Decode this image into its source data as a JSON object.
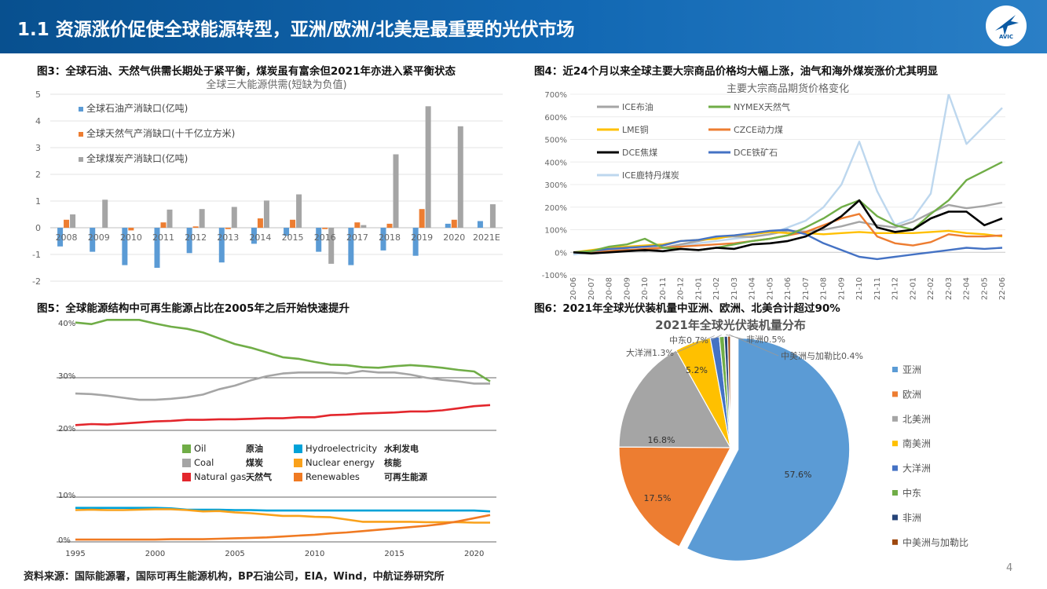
{
  "header": {
    "title": "1.1 资源涨价促使全球能源转型，亚洲/欧洲/北美是最重要的光伏市场",
    "logo_text": "AVIC"
  },
  "figures": {
    "fig3_caption": "图3：全球石油、天然气供需长期处于紧平衡，煤炭虽有富余但2021年亦进入紧平衡状态",
    "fig4_caption": "图4：近24个月以来全球主要大宗商品价格均大幅上涨，油气和海外煤炭涨价尤其明显",
    "fig5_caption": "图5：全球能源结构中可再生能源占比在2005年之后开始快速提升",
    "fig6_caption": "图6：2021年全球光伏装机量中亚洲、欧洲、北美合计超过90%"
  },
  "footer": {
    "source": "资料来源：国际能源署，国际可再生能源机构，BP石油公司，EIA，Wind，中航证券研究所",
    "page": "4"
  },
  "chart_data": [
    {
      "id": "fig3",
      "type": "bar",
      "title": "全球三大能源供需(短缺为负值)",
      "categories": [
        "2008",
        "2009",
        "2010",
        "2011",
        "2012",
        "2013",
        "2014",
        "2015",
        "2016",
        "2017",
        "2018",
        "2019",
        "2020",
        "2021E"
      ],
      "ylim": [
        -2,
        5
      ],
      "yticks": [
        -2,
        -1,
        0,
        1,
        2,
        3,
        4,
        5
      ],
      "grid": true,
      "legend_position": "top-left",
      "series": [
        {
          "name": "全球石油产消缺口(亿吨)",
          "color": "#5b9bd5",
          "values": [
            -0.7,
            -0.9,
            -1.4,
            -1.5,
            -0.95,
            -1.3,
            -0.6,
            -0.3,
            -0.9,
            -1.4,
            -0.85,
            -1.05,
            0.15,
            0.25
          ]
        },
        {
          "name": "全球天然气产消缺口(十千亿立方米)",
          "color": "#ed7d31",
          "values": [
            0.3,
            0.0,
            -0.1,
            0.2,
            0.05,
            -0.05,
            0.35,
            0.3,
            -0.05,
            0.2,
            0.15,
            0.7,
            0.3,
            0.0
          ]
        },
        {
          "name": "全球煤炭产消缺口(亿吨)",
          "color": "#a5a5a5",
          "values": [
            0.5,
            1.05,
            0.0,
            0.68,
            0.7,
            0.78,
            1.02,
            1.25,
            -1.35,
            0.1,
            2.75,
            4.55,
            3.8,
            0.88
          ]
        }
      ]
    },
    {
      "id": "fig4",
      "type": "line",
      "title": "主要大宗商品期货价格变化",
      "x": [
        "20-06",
        "20-07",
        "20-08",
        "20-09",
        "20-10",
        "20-11",
        "20-12",
        "21-01",
        "21-02",
        "21-03",
        "21-04",
        "21-05",
        "21-06",
        "21-07",
        "21-08",
        "21-09",
        "21-10",
        "21-11",
        "21-12",
        "22-01",
        "22-02",
        "22-03",
        "22-04",
        "22-05",
        "22-06"
      ],
      "ylim": [
        -100,
        700
      ],
      "yticks": [
        "-100%",
        "0%",
        "100%",
        "200%",
        "300%",
        "400%",
        "500%",
        "600%",
        "700%"
      ],
      "legend_position": "top-left",
      "series": [
        {
          "name": "ICE布油",
          "color": "#a5a5a5",
          "values": [
            0,
            5,
            10,
            12,
            5,
            20,
            35,
            50,
            65,
            70,
            68,
            80,
            95,
            92,
            100,
            115,
            135,
            120,
            110,
            135,
            175,
            210,
            195,
            205,
            220
          ]
        },
        {
          "name": "NYMEX天然气",
          "color": "#70ad47",
          "values": [
            0,
            5,
            25,
            35,
            60,
            20,
            15,
            10,
            20,
            35,
            50,
            60,
            75,
            110,
            150,
            200,
            230,
            160,
            120,
            100,
            170,
            230,
            320,
            360,
            400
          ]
        },
        {
          "name": "LME铜",
          "color": "#ffc000",
          "values": [
            0,
            10,
            20,
            25,
            30,
            35,
            50,
            55,
            60,
            75,
            80,
            90,
            85,
            85,
            80,
            85,
            90,
            85,
            85,
            85,
            90,
            95,
            85,
            80,
            70
          ]
        },
        {
          "name": "CZCE动力煤",
          "color": "#ed7d31",
          "values": [
            0,
            0,
            5,
            10,
            15,
            20,
            25,
            30,
            35,
            40,
            50,
            60,
            75,
            90,
            120,
            150,
            170,
            70,
            40,
            30,
            45,
            80,
            70,
            70,
            75
          ]
        },
        {
          "name": "DCE焦煤",
          "color": "#000000",
          "values": [
            0,
            -5,
            0,
            5,
            10,
            5,
            15,
            10,
            20,
            15,
            35,
            40,
            50,
            70,
            110,
            160,
            230,
            110,
            90,
            100,
            150,
            180,
            180,
            120,
            150
          ]
        },
        {
          "name": "DCE铁矿石",
          "color": "#4472c4",
          "values": [
            0,
            5,
            15,
            20,
            25,
            30,
            50,
            55,
            70,
            75,
            85,
            95,
            100,
            80,
            40,
            10,
            -20,
            -30,
            -20,
            -10,
            0,
            10,
            20,
            15,
            20
          ]
        },
        {
          "name": "ICE鹿特丹煤炭",
          "color": "#bdd7ee",
          "values": [
            -10,
            0,
            5,
            10,
            15,
            20,
            30,
            40,
            50,
            60,
            70,
            80,
            110,
            140,
            200,
            300,
            490,
            270,
            120,
            150,
            260,
            700,
            480,
            560,
            640
          ]
        }
      ]
    },
    {
      "id": "fig5",
      "type": "line",
      "x_years": [
        1995,
        1996,
        1997,
        1998,
        1999,
        2000,
        2001,
        2002,
        2003,
        2004,
        2005,
        2006,
        2007,
        2008,
        2009,
        2010,
        2011,
        2012,
        2013,
        2014,
        2015,
        2016,
        2017,
        2018,
        2019,
        2020,
        2021
      ],
      "xticks": [
        1995,
        2000,
        2005,
        2010,
        2015,
        2020
      ],
      "ylim": [
        0,
        42
      ],
      "yticks": [
        "0%",
        "10%",
        "20%",
        "30%",
        "40%"
      ],
      "legend_position": "center",
      "series": [
        {
          "name": "Oil",
          "label_cn": "原油",
          "color": "#70ad47",
          "values": [
            40.5,
            40.2,
            41.0,
            41.0,
            41.0,
            40.3,
            39.7,
            39.3,
            38.6,
            37.5,
            36.4,
            35.7,
            34.8,
            33.9,
            33.6,
            33.0,
            32.5,
            32.4,
            32.0,
            31.9,
            32.2,
            32.4,
            32.2,
            31.9,
            31.5,
            31.2,
            29.3
          ]
        },
        {
          "name": "Coal",
          "label_cn": "煤炭",
          "color": "#a5a5a5",
          "values": [
            27.0,
            26.9,
            26.6,
            26.2,
            25.8,
            25.8,
            26.0,
            26.3,
            26.8,
            27.8,
            28.5,
            29.5,
            30.3,
            30.8,
            31.0,
            31.0,
            31.0,
            30.8,
            31.3,
            31.0,
            31.0,
            30.6,
            30.0,
            29.6,
            29.3,
            28.9,
            28.9
          ]
        },
        {
          "name": "Natural gas",
          "label_cn": "天然气",
          "color": "#e3262c",
          "values": [
            21.0,
            21.2,
            21.1,
            21.3,
            21.5,
            21.7,
            21.8,
            22.0,
            22.0,
            22.1,
            22.1,
            22.2,
            22.3,
            22.3,
            22.5,
            22.5,
            22.9,
            23.0,
            23.2,
            23.3,
            23.4,
            23.6,
            23.6,
            23.8,
            24.2,
            24.6,
            24.8
          ]
        },
        {
          "name": "Hydroelectricity",
          "label_cn": "水利发电",
          "color": "#00a2d8",
          "values": [
            7.6,
            7.6,
            7.6,
            7.6,
            7.6,
            7.6,
            7.5,
            7.2,
            7.2,
            7.2,
            7.1,
            7.1,
            7.0,
            7.0,
            7.0,
            7.0,
            7.0,
            7.0,
            7.0,
            7.0,
            7.0,
            7.0,
            7.0,
            7.0,
            7.0,
            7.0,
            6.8
          ]
        },
        {
          "name": "Nuclear energy",
          "label_cn": "核能",
          "color": "#f9a11b",
          "values": [
            7.1,
            7.2,
            7.1,
            7.1,
            7.2,
            7.3,
            7.3,
            7.1,
            6.8,
            6.9,
            6.6,
            6.4,
            6.1,
            5.8,
            5.8,
            5.6,
            5.5,
            5.0,
            4.5,
            4.5,
            4.5,
            4.5,
            4.4,
            4.4,
            4.4,
            4.3,
            4.3
          ]
        },
        {
          "name": "Renewables",
          "label_cn": "可再生能源",
          "color": "#f07a22",
          "values": [
            0.5,
            0.5,
            0.5,
            0.5,
            0.5,
            0.5,
            0.6,
            0.6,
            0.6,
            0.7,
            0.8,
            0.9,
            1.0,
            1.2,
            1.4,
            1.6,
            1.9,
            2.1,
            2.4,
            2.7,
            3.0,
            3.3,
            3.6,
            4.0,
            4.6,
            5.3,
            6.0
          ]
        }
      ]
    },
    {
      "id": "fig6",
      "type": "pie",
      "title": "2021年全球光伏装机量分布",
      "legend_position": "right",
      "slices": [
        {
          "name": "亚洲",
          "value": 57.6,
          "label": "57.6%",
          "color": "#5b9bd5"
        },
        {
          "name": "欧洲",
          "value": 17.5,
          "label": "17.5%",
          "color": "#ed7d31"
        },
        {
          "name": "北美洲",
          "value": 16.8,
          "label": "16.8%",
          "color": "#a5a5a5"
        },
        {
          "name": "南美洲",
          "value": 5.2,
          "label": "5.2%",
          "color": "#ffc000"
        },
        {
          "name": "大洋洲",
          "value": 1.3,
          "label": "大洋洲1.3%",
          "color": "#4472c4"
        },
        {
          "name": "中东",
          "value": 0.7,
          "label": "中东0.7%",
          "color": "#70ad47"
        },
        {
          "name": "非洲",
          "value": 0.5,
          "label": "非洲0.5%",
          "color": "#264478"
        },
        {
          "name": "中美洲与加勒比",
          "value": 0.4,
          "label": "中美洲与加勒比0.4%",
          "color": "#9e480e"
        }
      ]
    }
  ]
}
